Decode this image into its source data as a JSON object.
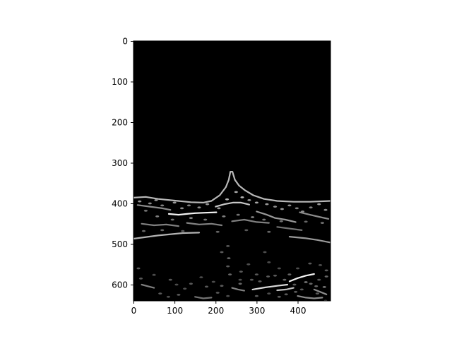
{
  "chart_data": {
    "type": "heatmap",
    "title": "",
    "xlabel": "",
    "ylabel": "",
    "image_width": 480,
    "image_height": 640,
    "xlim": [
      0,
      480
    ],
    "ylim": [
      640,
      0
    ],
    "y_inverted": true,
    "xticks": [
      0,
      100,
      200,
      300,
      400
    ],
    "yticks": [
      0,
      100,
      200,
      300,
      400,
      500,
      600
    ],
    "xtick_labels": [
      "0",
      "100",
      "200",
      "300",
      "400"
    ],
    "ytick_labels": [
      "0",
      "100",
      "200",
      "300",
      "400",
      "500",
      "600"
    ],
    "colormap": "gray",
    "background_color": "#000000",
    "grid": false,
    "legend": "none",
    "edge_segments": [
      {
        "points": [
          [
            0,
            386
          ],
          [
            30,
            384
          ],
          [
            60,
            389
          ],
          [
            100,
            393
          ],
          [
            140,
            397
          ],
          [
            170,
            398
          ],
          [
            190,
            394
          ],
          [
            210,
            380
          ],
          [
            225,
            360
          ],
          [
            232,
            342
          ],
          [
            236,
            322
          ],
          [
            241,
            322
          ],
          [
            247,
            342
          ],
          [
            257,
            356
          ],
          [
            272,
            368
          ],
          [
            292,
            380
          ],
          [
            318,
            389
          ],
          [
            350,
            394
          ],
          [
            390,
            396
          ],
          [
            430,
            396
          ],
          [
            480,
            394
          ]
        ],
        "intensity": 0.72
      },
      {
        "points": [
          [
            200,
            408
          ],
          [
            222,
            402
          ],
          [
            242,
            398
          ],
          [
            262,
            398
          ],
          [
            282,
            403
          ]
        ],
        "intensity": 0.78
      },
      {
        "points": [
          [
            86,
            426
          ],
          [
            110,
            428
          ],
          [
            130,
            426
          ],
          [
            150,
            424
          ],
          [
            175,
            423
          ],
          [
            202,
            422
          ]
        ],
        "intensity": 0.95
      },
      {
        "points": [
          [
            0,
            487
          ],
          [
            60,
            479
          ],
          [
            120,
            473
          ],
          [
            160,
            472
          ]
        ],
        "intensity": 0.7
      },
      {
        "points": [
          [
            380,
            482
          ],
          [
            420,
            486
          ],
          [
            448,
            490
          ],
          [
            478,
            496
          ]
        ],
        "intensity": 0.6
      },
      {
        "points": [
          [
            290,
            612
          ],
          [
            320,
            607
          ],
          [
            350,
            603
          ],
          [
            375,
            600
          ]
        ],
        "intensity": 0.85
      },
      {
        "points": [
          [
            380,
            592
          ],
          [
            400,
            584
          ],
          [
            420,
            578
          ],
          [
            440,
            574
          ]
        ],
        "intensity": 0.95
      },
      {
        "points": [
          [
            350,
            614
          ],
          [
            372,
            612
          ],
          [
            390,
            608
          ]
        ],
        "intensity": 0.75
      },
      {
        "points": [
          [
            10,
            404
          ],
          [
            40,
            408
          ],
          [
            70,
            412
          ],
          [
            90,
            416
          ]
        ],
        "intensity": 0.55
      },
      {
        "points": [
          [
            300,
            420
          ],
          [
            325,
            428
          ],
          [
            345,
            436
          ],
          [
            370,
            440
          ],
          [
            395,
            446
          ]
        ],
        "intensity": 0.6
      },
      {
        "points": [
          [
            405,
            422
          ],
          [
            430,
            428
          ],
          [
            452,
            433
          ],
          [
            475,
            438
          ]
        ],
        "intensity": 0.55
      },
      {
        "points": [
          [
            20,
            450
          ],
          [
            50,
            454
          ],
          [
            80,
            452
          ],
          [
            110,
            456
          ]
        ],
        "intensity": 0.5
      },
      {
        "points": [
          [
            130,
            448
          ],
          [
            160,
            452
          ],
          [
            190,
            450
          ],
          [
            215,
            454
          ]
        ],
        "intensity": 0.5
      },
      {
        "points": [
          [
            240,
            444
          ],
          [
            270,
            440
          ],
          [
            300,
            446
          ],
          [
            330,
            448
          ]
        ],
        "intensity": 0.5
      },
      {
        "points": [
          [
            350,
            458
          ],
          [
            380,
            462
          ],
          [
            410,
            466
          ]
        ],
        "intensity": 0.45
      },
      {
        "points": [
          [
            20,
            600
          ],
          [
            35,
            604
          ],
          [
            50,
            608
          ]
        ],
        "intensity": 0.5
      },
      {
        "points": [
          [
            240,
            608
          ],
          [
            255,
            612
          ],
          [
            270,
            615
          ]
        ],
        "intensity": 0.5
      },
      {
        "points": [
          [
            150,
            630
          ],
          [
            170,
            634
          ],
          [
            190,
            632
          ]
        ],
        "intensity": 0.45
      },
      {
        "points": [
          [
            400,
            628
          ],
          [
            420,
            632
          ],
          [
            440,
            634
          ],
          [
            460,
            632
          ]
        ],
        "intensity": 0.55
      },
      {
        "points": [
          [
            440,
            612
          ],
          [
            455,
            618
          ],
          [
            470,
            624
          ]
        ],
        "intensity": 0.55
      }
    ],
    "edge_blobs": [
      [
        15,
        395,
        0.6
      ],
      [
        40,
        400,
        0.55
      ],
      [
        55,
        392,
        0.6
      ],
      [
        70,
        405,
        0.5
      ],
      [
        100,
        398,
        0.6
      ],
      [
        118,
        412,
        0.55
      ],
      [
        135,
        405,
        0.5
      ],
      [
        160,
        410,
        0.55
      ],
      [
        180,
        402,
        0.6
      ],
      [
        208,
        412,
        0.6
      ],
      [
        228,
        390,
        0.7
      ],
      [
        250,
        372,
        0.65
      ],
      [
        265,
        385,
        0.7
      ],
      [
        282,
        392,
        0.6
      ],
      [
        300,
        398,
        0.65
      ],
      [
        325,
        402,
        0.6
      ],
      [
        345,
        408,
        0.55
      ],
      [
        362,
        414,
        0.6
      ],
      [
        380,
        405,
        0.55
      ],
      [
        398,
        412,
        0.5
      ],
      [
        412,
        420,
        0.55
      ],
      [
        432,
        410,
        0.5
      ],
      [
        452,
        402,
        0.6
      ],
      [
        468,
        416,
        0.55
      ],
      [
        30,
        418,
        0.45
      ],
      [
        58,
        432,
        0.5
      ],
      [
        95,
        440,
        0.45
      ],
      [
        140,
        436,
        0.5
      ],
      [
        175,
        440,
        0.45
      ],
      [
        220,
        432,
        0.5
      ],
      [
        255,
        428,
        0.45
      ],
      [
        290,
        434,
        0.5
      ],
      [
        318,
        440,
        0.45
      ],
      [
        360,
        444,
        0.45
      ],
      [
        420,
        445,
        0.4
      ],
      [
        460,
        448,
        0.45
      ],
      [
        25,
        468,
        0.4
      ],
      [
        70,
        466,
        0.4
      ],
      [
        120,
        468,
        0.35
      ],
      [
        205,
        470,
        0.4
      ],
      [
        275,
        466,
        0.35
      ],
      [
        330,
        470,
        0.4
      ],
      [
        230,
        505,
        0.35
      ],
      [
        215,
        520,
        0.35
      ],
      [
        232,
        535,
        0.4
      ],
      [
        230,
        555,
        0.35
      ],
      [
        235,
        575,
        0.4
      ],
      [
        262,
        568,
        0.35
      ],
      [
        280,
        550,
        0.3
      ],
      [
        300,
        575,
        0.35
      ],
      [
        320,
        520,
        0.3
      ],
      [
        330,
        545,
        0.3
      ],
      [
        345,
        578,
        0.35
      ],
      [
        355,
        560,
        0.3
      ],
      [
        12,
        560,
        0.35
      ],
      [
        18,
        585,
        0.35
      ],
      [
        90,
        588,
        0.35
      ],
      [
        105,
        600,
        0.3
      ],
      [
        140,
        598,
        0.35
      ],
      [
        178,
        605,
        0.35
      ],
      [
        195,
        593,
        0.3
      ],
      [
        215,
        603,
        0.35
      ],
      [
        260,
        598,
        0.4
      ],
      [
        288,
        588,
        0.35
      ],
      [
        308,
        592,
        0.35
      ],
      [
        328,
        580,
        0.35
      ],
      [
        368,
        588,
        0.4
      ],
      [
        392,
        600,
        0.35
      ],
      [
        410,
        612,
        0.35
      ],
      [
        432,
        598,
        0.4
      ],
      [
        452,
        588,
        0.35
      ],
      [
        470,
        580,
        0.4
      ],
      [
        465,
        606,
        0.45
      ],
      [
        65,
        622,
        0.35
      ],
      [
        85,
        630,
        0.3
      ],
      [
        110,
        625,
        0.35
      ],
      [
        205,
        620,
        0.35
      ],
      [
        230,
        628,
        0.3
      ],
      [
        300,
        628,
        0.35
      ],
      [
        330,
        622,
        0.3
      ],
      [
        355,
        630,
        0.35
      ],
      [
        372,
        624,
        0.35
      ],
      [
        395,
        618,
        0.35
      ],
      [
        448,
        622,
        0.35
      ],
      [
        470,
        565,
        0.35
      ],
      [
        455,
        552,
        0.3
      ],
      [
        430,
        548,
        0.35
      ],
      [
        400,
        560,
        0.3
      ],
      [
        380,
        575,
        0.4
      ],
      [
        260,
        588,
        0.3
      ],
      [
        165,
        582,
        0.3
      ],
      [
        50,
        576,
        0.3
      ],
      [
        125,
        610,
        0.3
      ],
      [
        420,
        594,
        0.45
      ],
      [
        445,
        604,
        0.4
      ],
      [
        468,
        640,
        0.35
      ]
    ]
  }
}
